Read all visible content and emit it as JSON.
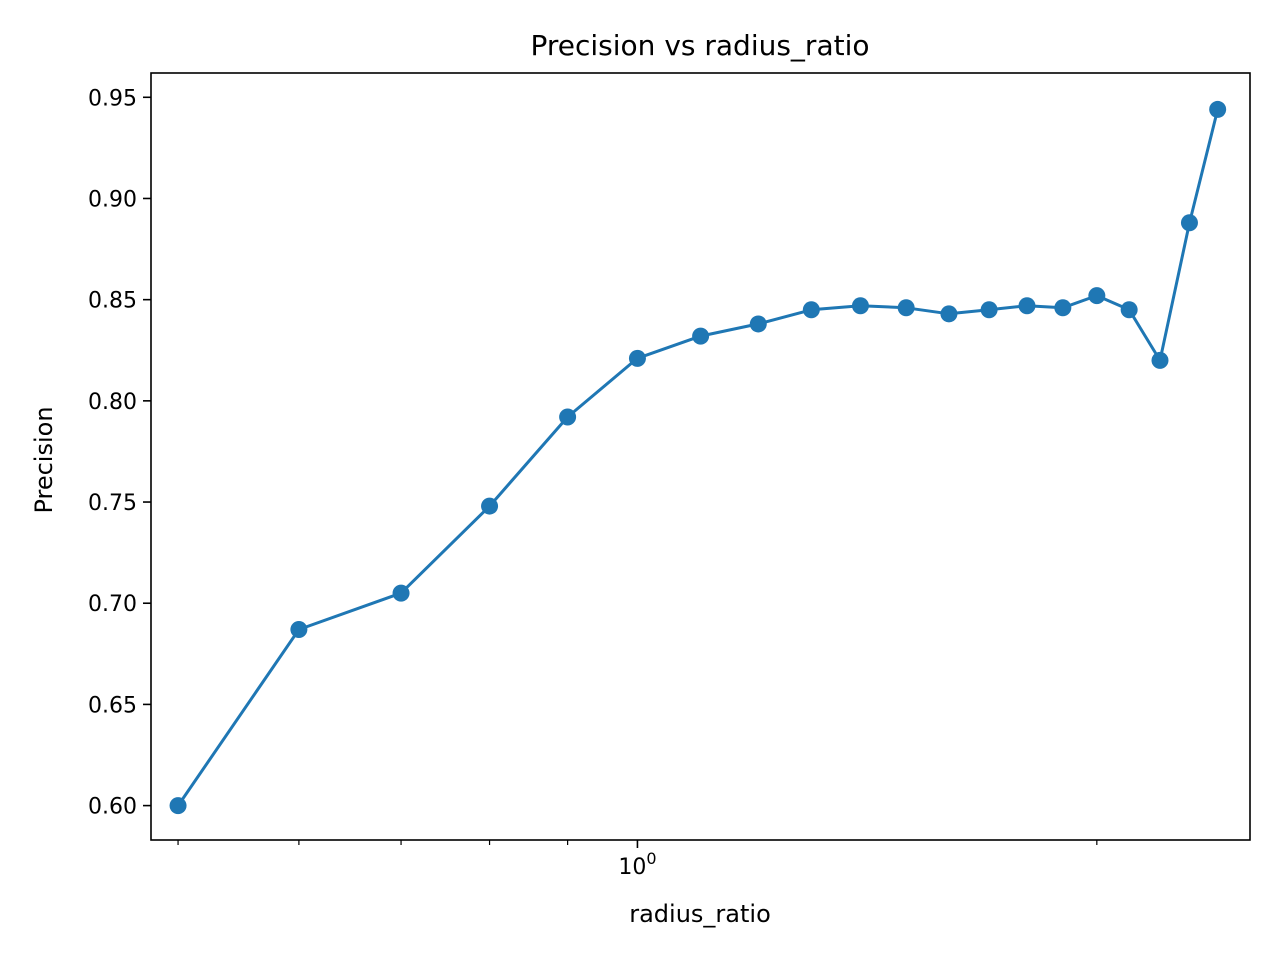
{
  "chart_data": {
    "type": "line",
    "title": "Precision vs radius_ratio",
    "xlabel": "radius_ratio",
    "ylabel": "Precision",
    "xscale": "log",
    "grid": false,
    "legend": "none",
    "color": "#1f77b4",
    "x": [
      0.5,
      0.6,
      0.7,
      0.8,
      0.9,
      1.0,
      1.1,
      1.2,
      1.3,
      1.4,
      1.5,
      1.6,
      1.7,
      1.8,
      1.9,
      2.0,
      2.1,
      2.2,
      2.3,
      2.4
    ],
    "y": [
      0.6,
      0.687,
      0.705,
      0.748,
      0.792,
      0.821,
      0.832,
      0.838,
      0.845,
      0.847,
      0.846,
      0.843,
      0.845,
      0.847,
      0.846,
      0.852,
      0.845,
      0.82,
      0.888,
      0.944
    ],
    "xlim": [
      0.48,
      2.52
    ],
    "ylim": [
      0.583,
      0.962
    ],
    "y_ticks": [
      0.6,
      0.65,
      0.7,
      0.75,
      0.8,
      0.85,
      0.9,
      0.95
    ],
    "y_tick_labels": [
      "0.60",
      "0.65",
      "0.70",
      "0.75",
      "0.80",
      "0.85",
      "0.90",
      "0.95"
    ],
    "x_major_tick": {
      "value": 1,
      "base": "10",
      "exponent": "0"
    },
    "x_minor_ticks": [
      0.5,
      0.6,
      0.7,
      0.8,
      0.9,
      2
    ]
  }
}
